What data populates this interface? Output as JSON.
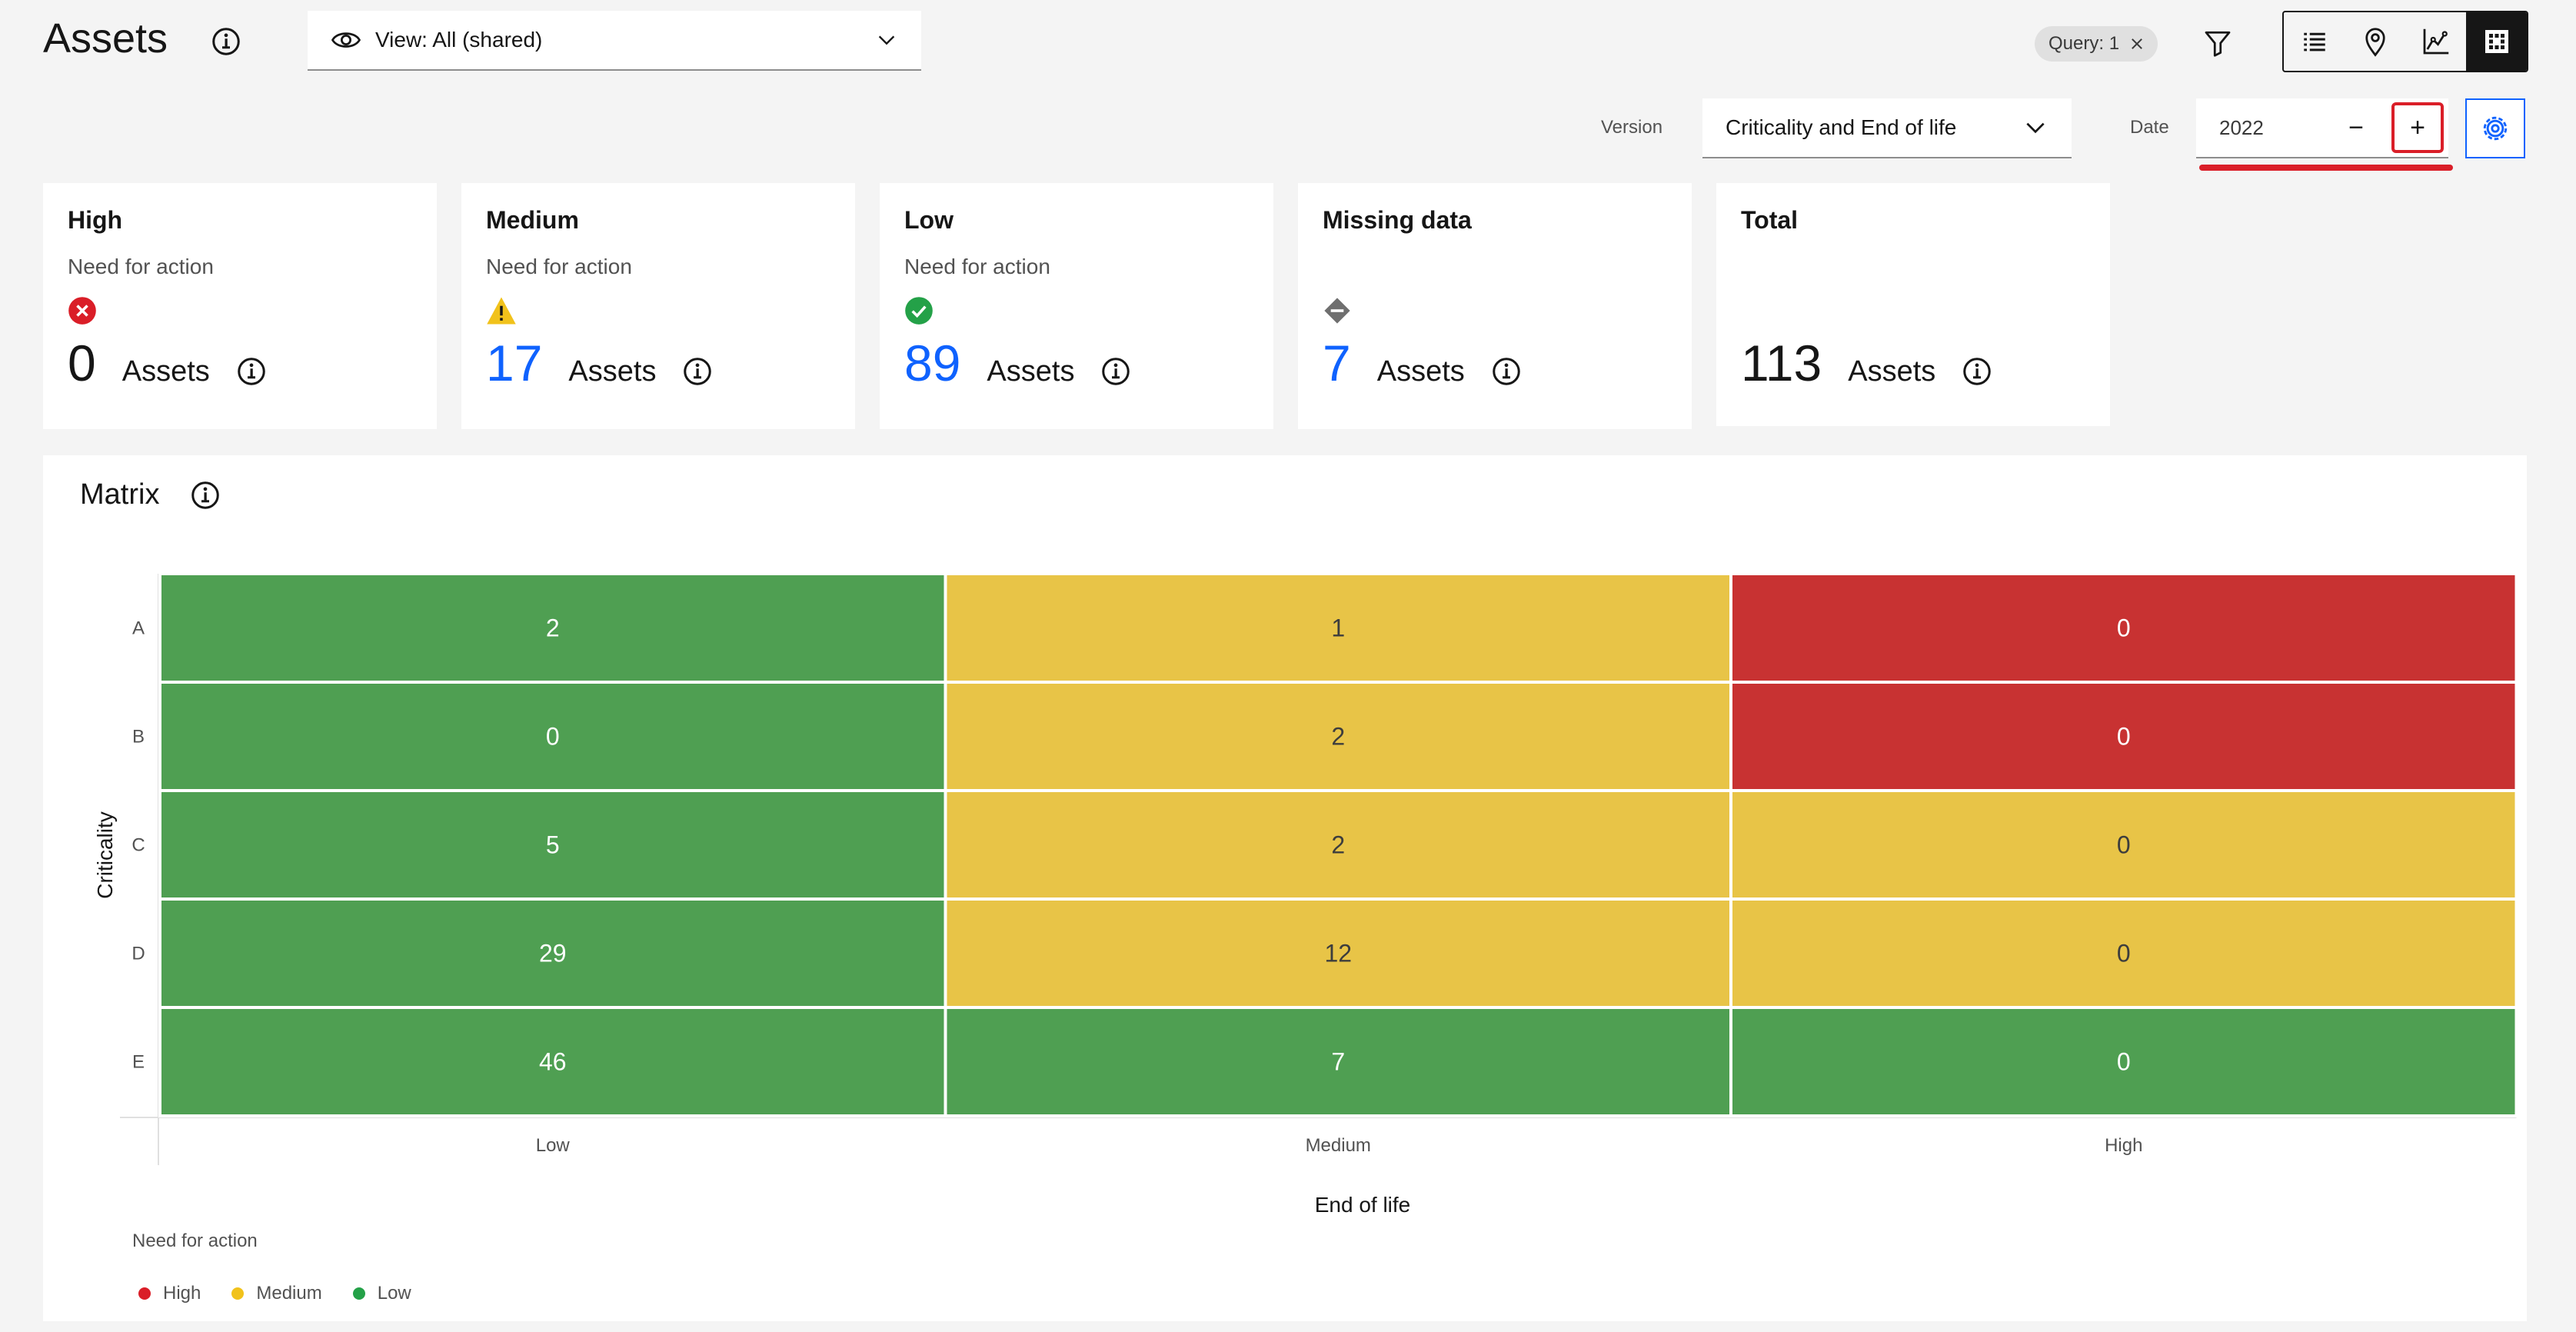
{
  "header": {
    "title": "Assets",
    "view_select": "View: All (shared)",
    "query_tag": "Query: 1"
  },
  "controls": {
    "version_label": "Version",
    "version_value": "Criticality and End of life",
    "date_label": "Date",
    "date_value": "2022",
    "minus": "−",
    "plus": "+"
  },
  "cards": [
    {
      "title": "High",
      "subtitle": "Need for action",
      "icon": "error-icon",
      "value": "0",
      "unit": "Assets"
    },
    {
      "title": "Medium",
      "subtitle": "Need for action",
      "icon": "warning-icon",
      "value": "17",
      "unit": "Assets"
    },
    {
      "title": "Low",
      "subtitle": "Need for action",
      "icon": "check-icon",
      "value": "89",
      "unit": "Assets"
    },
    {
      "title": "Missing data",
      "subtitle": "",
      "icon": "missing-data-icon",
      "value": "7",
      "unit": "Assets"
    },
    {
      "title": "Total",
      "subtitle": "",
      "icon": "",
      "value": "113",
      "unit": "Assets"
    }
  ],
  "matrix": {
    "title": "Matrix",
    "legend_title": "Need for action",
    "legend": [
      {
        "label": "High",
        "color": "#da1e28"
      },
      {
        "label": "Medium",
        "color": "#f1c21b"
      },
      {
        "label": "Low",
        "color": "#24a148"
      }
    ]
  },
  "colors": {
    "high": "#c83232",
    "medium": "#e8c447",
    "low": "#4f9f52",
    "accent": "#0f62fe"
  },
  "chart_data": {
    "type": "heatmap",
    "title": "Matrix",
    "xlabel": "End of life",
    "ylabel": "Criticality",
    "x_categories": [
      "Low",
      "Medium",
      "High"
    ],
    "y_categories": [
      "A",
      "B",
      "C",
      "D",
      "E"
    ],
    "values": [
      [
        2,
        1,
        0
      ],
      [
        0,
        2,
        0
      ],
      [
        5,
        2,
        0
      ],
      [
        29,
        12,
        0
      ],
      [
        46,
        7,
        0
      ]
    ],
    "levels": [
      [
        "low",
        "medium",
        "high"
      ],
      [
        "low",
        "medium",
        "high"
      ],
      [
        "low",
        "medium",
        "medium"
      ],
      [
        "low",
        "medium",
        "medium"
      ],
      [
        "low",
        "low",
        "low"
      ]
    ],
    "legend": [
      "High",
      "Medium",
      "Low"
    ],
    "legend_position": "bottom-left"
  }
}
